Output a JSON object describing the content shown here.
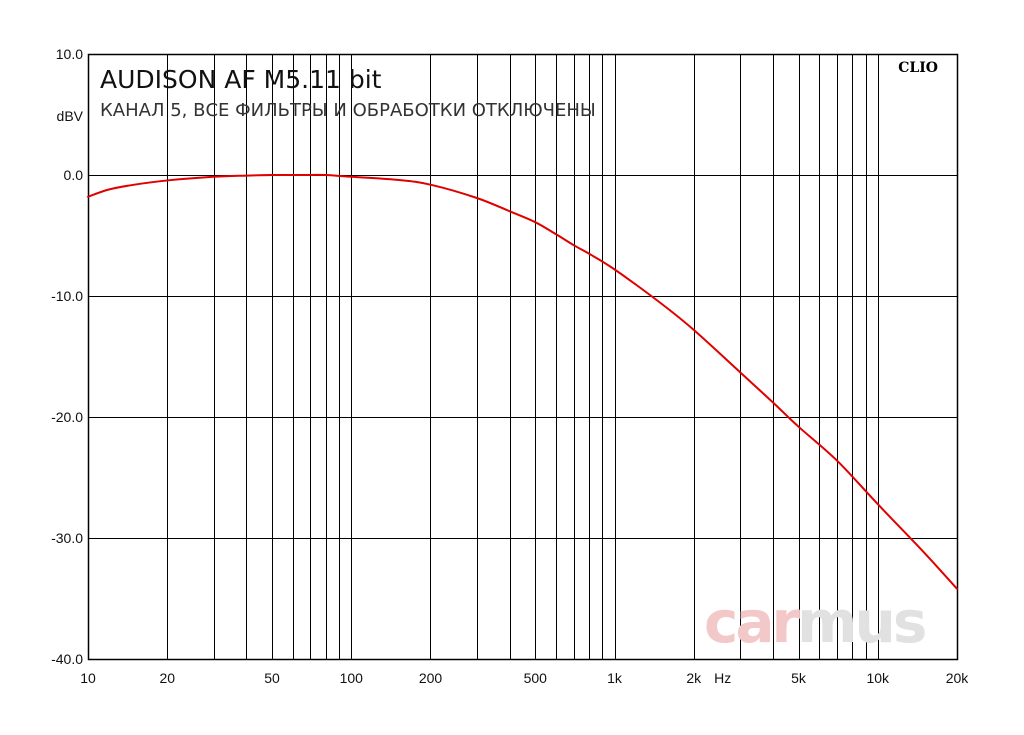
{
  "chart_data": {
    "type": "line",
    "title": "AUDISON AF M5.11 bit",
    "subtitle": "КАНАЛ 5, ВСЕ ФИЛЬТРЫ И ОБРАБОТКИ ОТКЛЮЧЕНЫ",
    "ylabel": "dBV",
    "xlabel": "Hz",
    "xscale": "log",
    "xlim": [
      10,
      20000
    ],
    "ylim": [
      -40,
      10
    ],
    "grid": true,
    "legend": "none",
    "xticks": [
      {
        "value": 10,
        "label": "10"
      },
      {
        "value": 20,
        "label": "20"
      },
      {
        "value": 50,
        "label": "50"
      },
      {
        "value": 100,
        "label": "100"
      },
      {
        "value": 200,
        "label": "200"
      },
      {
        "value": 500,
        "label": "500"
      },
      {
        "value": 1000,
        "label": "1k"
      },
      {
        "value": 2000,
        "label": "2k"
      },
      {
        "value": 5000,
        "label": "5k"
      },
      {
        "value": 10000,
        "label": "10k"
      },
      {
        "value": 20000,
        "label": "20k"
      }
    ],
    "yticks": [
      {
        "value": 10,
        "label": "10.0"
      },
      {
        "value": 0,
        "label": "0.0"
      },
      {
        "value": -10,
        "label": "-10.0"
      },
      {
        "value": -20,
        "label": "-20.0"
      },
      {
        "value": -30,
        "label": "-30.0"
      },
      {
        "value": -40,
        "label": "-40.0"
      }
    ],
    "series": [
      {
        "color": "#e00000",
        "x": [
          10,
          12,
          15,
          20,
          30,
          40,
          50,
          60,
          70,
          80,
          100,
          150,
          200,
          300,
          400,
          500,
          600,
          700,
          800,
          1000,
          1500,
          2000,
          3000,
          4000,
          5000,
          7000,
          10000,
          15000,
          20000
        ],
        "y": [
          -1.8,
          -1.2,
          -0.8,
          -0.45,
          -0.15,
          -0.05,
          0.0,
          0.0,
          0.0,
          0.0,
          -0.15,
          -0.4,
          -0.8,
          -1.9,
          -3.0,
          -3.9,
          -4.9,
          -5.8,
          -6.5,
          -7.8,
          -10.6,
          -12.8,
          -16.3,
          -18.8,
          -20.8,
          -23.6,
          -27.2,
          -31.2,
          -34.2
        ]
      }
    ]
  },
  "labels": {
    "brand": "CLIO",
    "watermark_part1": "car",
    "watermark_part2": "mus"
  },
  "colors": {
    "curve": "#e00000",
    "grid": "#000000",
    "watermark_red": "#f3c8c8",
    "watermark_gray": "#e1e1e1"
  }
}
